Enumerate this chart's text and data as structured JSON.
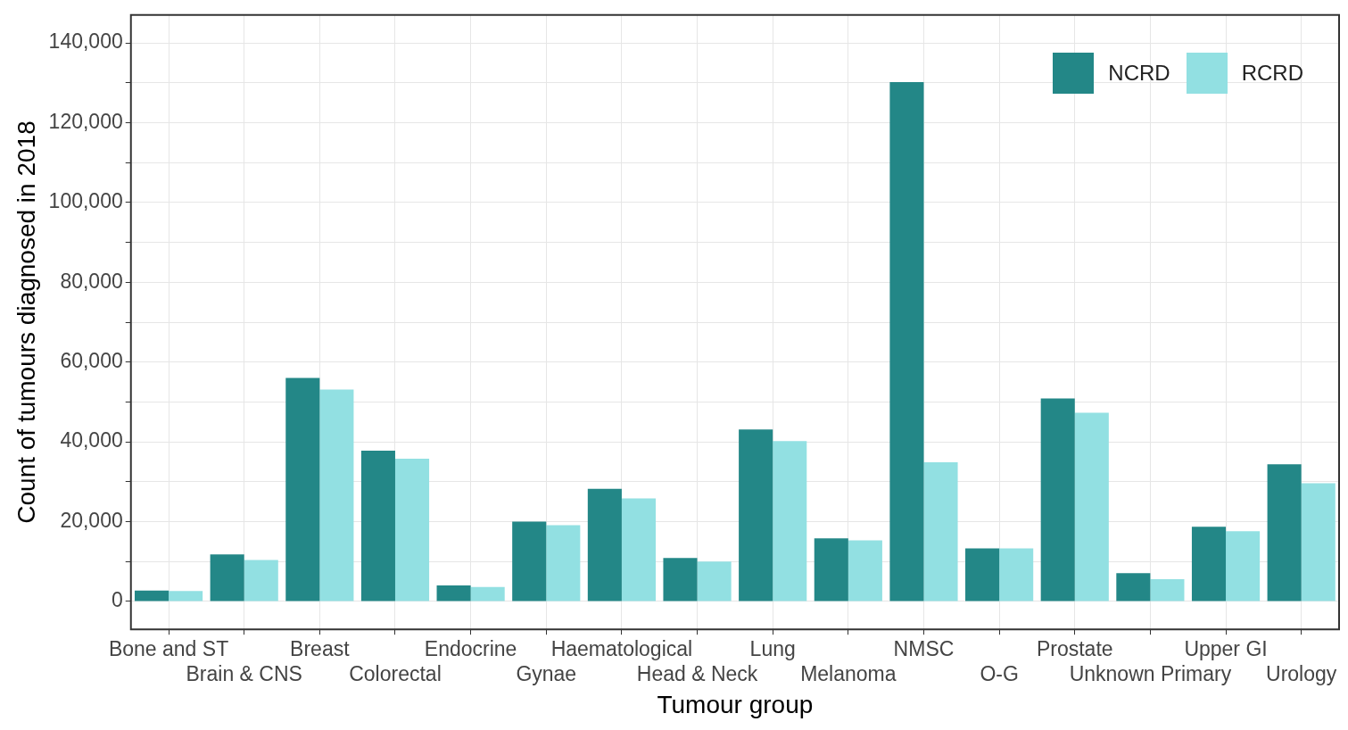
{
  "chart_data": {
    "type": "bar",
    "xlabel": "Tumour group",
    "ylabel": "Count of tumours diagnosed in 2018",
    "categories": [
      "Bone and ST",
      "Brain & CNS",
      "Breast",
      "Colorectal",
      "Endocrine",
      "Gynae",
      "Haematological",
      "Head & Neck",
      "Lung",
      "Melanoma",
      "NMSC",
      "O-G",
      "Prostate",
      "Unknown Primary",
      "Upper GI",
      "Urology"
    ],
    "series": [
      {
        "name": "NCRD",
        "color": "#238787",
        "values": [
          2700,
          11800,
          56000,
          37800,
          4000,
          20000,
          28200,
          10900,
          43100,
          15800,
          130200,
          13300,
          50900,
          7100,
          18700,
          34400
        ]
      },
      {
        "name": "RCRD",
        "color": "#92e0e2",
        "values": [
          2600,
          10400,
          53100,
          35800,
          3600,
          19100,
          25800,
          10000,
          40200,
          15300,
          34900,
          13300,
          47300,
          5600,
          17600,
          29600
        ]
      }
    ],
    "ylim": [
      -7000,
      147000
    ],
    "yticks": [
      0,
      {
        "value": 10000,
        "label": null
      },
      {
        "value": 20000,
        "label": "20,000"
      },
      {
        "value": 30000,
        "label": null
      },
      {
        "value": 40000,
        "label": "40,000"
      },
      {
        "value": 50000,
        "label": null
      },
      {
        "value": 60000,
        "label": "60,000"
      },
      {
        "value": 70000,
        "label": null
      },
      {
        "value": 80000,
        "label": "80,000"
      },
      {
        "value": 90000,
        "label": null
      },
      {
        "value": 100000,
        "label": "100,000"
      },
      {
        "value": 110000,
        "label": null
      },
      {
        "value": 120000,
        "label": "120,000"
      },
      {
        "value": 130000,
        "label": null
      },
      {
        "value": 140000,
        "label": "140,000"
      }
    ],
    "grid": true,
    "legend": "top right"
  }
}
